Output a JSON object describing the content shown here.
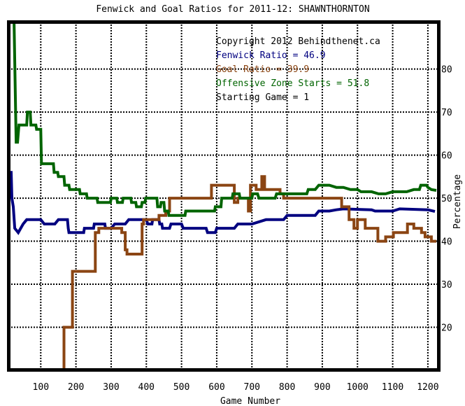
{
  "chart_data": {
    "type": "line",
    "title": "Fenwick and Goal Ratios for 2011-12: SHAWNTHORNTON",
    "xlabel": "Game Number",
    "ylabel": "Percentage",
    "xlim": [
      8,
      1232
    ],
    "ylim": [
      10,
      91
    ],
    "x_ticks": [
      100,
      200,
      300,
      400,
      500,
      600,
      700,
      800,
      900,
      1000,
      1100,
      1200
    ],
    "y_ticks": [
      20,
      30,
      40,
      50,
      60,
      70,
      80
    ],
    "grid": true,
    "legend": {
      "placement": "top-right",
      "copyright": "Copyright 2012 Behindthenet.ca",
      "starting_game": "Starting Game = 1",
      "entries": [
        {
          "label": "Fenwick Ratio = 46.9",
          "color": "#000080"
        },
        {
          "label": "Goal Ratio = 39.9",
          "color": "#8b4513"
        },
        {
          "label": "Offensive Zone Starts = 51.8",
          "color": "#006400"
        }
      ]
    },
    "series": [
      {
        "color": "#000080",
        "points": [
          [
            8,
            41
          ],
          [
            10,
            56
          ],
          [
            16,
            56
          ],
          [
            18,
            50
          ],
          [
            22,
            48
          ],
          [
            26,
            43
          ],
          [
            36,
            42
          ],
          [
            50,
            44
          ],
          [
            60,
            45
          ],
          [
            100,
            45
          ],
          [
            110,
            44
          ],
          [
            140,
            44
          ],
          [
            150,
            45
          ],
          [
            176,
            45
          ],
          [
            178,
            43
          ],
          [
            180,
            42
          ],
          [
            222,
            42
          ],
          [
            224,
            43
          ],
          [
            250,
            43
          ],
          [
            252,
            44
          ],
          [
            282,
            44
          ],
          [
            284,
            43
          ],
          [
            300,
            43
          ],
          [
            310,
            44
          ],
          [
            340,
            44
          ],
          [
            350,
            45
          ],
          [
            380,
            45
          ],
          [
            400,
            45
          ],
          [
            404,
            44
          ],
          [
            416,
            44
          ],
          [
            418,
            45
          ],
          [
            436,
            45
          ],
          [
            438,
            44
          ],
          [
            444,
            44
          ],
          [
            446,
            43
          ],
          [
            466,
            43
          ],
          [
            470,
            44
          ],
          [
            500,
            44
          ],
          [
            505,
            43
          ],
          [
            570,
            43
          ],
          [
            574,
            42
          ],
          [
            596,
            42
          ],
          [
            600,
            43
          ],
          [
            650,
            43
          ],
          [
            660,
            44
          ],
          [
            700,
            44
          ],
          [
            740,
            45
          ],
          [
            790,
            45
          ],
          [
            800,
            46
          ],
          [
            880,
            46
          ],
          [
            890,
            47
          ],
          [
            920,
            47
          ],
          [
            940,
            47.3
          ],
          [
            960,
            47.5
          ],
          [
            1040,
            47.3
          ],
          [
            1050,
            47
          ],
          [
            1100,
            47
          ],
          [
            1120,
            47.5
          ],
          [
            1200,
            47.3
          ],
          [
            1220,
            46.9
          ]
        ]
      },
      {
        "color": "#8b4513",
        "points": [
          [
            166,
            10
          ],
          [
            166,
            20
          ],
          [
            190,
            20
          ],
          [
            190,
            33
          ],
          [
            200,
            33
          ],
          [
            200,
            33
          ],
          [
            255,
            33
          ],
          [
            255,
            42
          ],
          [
            265,
            42
          ],
          [
            265,
            43
          ],
          [
            330,
            43
          ],
          [
            330,
            42
          ],
          [
            340,
            42
          ],
          [
            340,
            38
          ],
          [
            345,
            38
          ],
          [
            345,
            37
          ],
          [
            388,
            37
          ],
          [
            388,
            44
          ],
          [
            392,
            44
          ],
          [
            392,
            45
          ],
          [
            412,
            45
          ],
          [
            412,
            45
          ],
          [
            436,
            45
          ],
          [
            436,
            46
          ],
          [
            455,
            46
          ],
          [
            455,
            47
          ],
          [
            466,
            47
          ],
          [
            466,
            50
          ],
          [
            585,
            50
          ],
          [
            585,
            53
          ],
          [
            650,
            53
          ],
          [
            650,
            49
          ],
          [
            660,
            49
          ],
          [
            660,
            50
          ],
          [
            690,
            50
          ],
          [
            690,
            47
          ],
          [
            696,
            47
          ],
          [
            696,
            53
          ],
          [
            712,
            53
          ],
          [
            712,
            52
          ],
          [
            728,
            52
          ],
          [
            728,
            55
          ],
          [
            736,
            55
          ],
          [
            736,
            52
          ],
          [
            780,
            52
          ],
          [
            780,
            51
          ],
          [
            790,
            51
          ],
          [
            790,
            50
          ],
          [
            955,
            50
          ],
          [
            955,
            48
          ],
          [
            976,
            48
          ],
          [
            976,
            45
          ],
          [
            990,
            45
          ],
          [
            990,
            43
          ],
          [
            1000,
            43
          ],
          [
            1000,
            45
          ],
          [
            1022,
            45
          ],
          [
            1022,
            43
          ],
          [
            1058,
            43
          ],
          [
            1058,
            40
          ],
          [
            1080,
            40
          ],
          [
            1080,
            41
          ],
          [
            1102,
            41
          ],
          [
            1102,
            42
          ],
          [
            1142,
            42
          ],
          [
            1142,
            44
          ],
          [
            1160,
            44
          ],
          [
            1160,
            43
          ],
          [
            1182,
            43
          ],
          [
            1182,
            42
          ],
          [
            1192,
            42
          ],
          [
            1192,
            41
          ],
          [
            1210,
            41
          ],
          [
            1210,
            40
          ],
          [
            1224,
            40
          ]
        ]
      },
      {
        "color": "#006400",
        "points": [
          [
            10,
            91
          ],
          [
            24,
            91
          ],
          [
            30,
            63
          ],
          [
            34,
            63
          ],
          [
            38,
            67
          ],
          [
            60,
            67
          ],
          [
            62,
            70
          ],
          [
            70,
            70
          ],
          [
            72,
            67
          ],
          [
            86,
            67
          ],
          [
            88,
            66
          ],
          [
            100,
            66
          ],
          [
            102,
            58
          ],
          [
            136,
            58
          ],
          [
            138,
            56
          ],
          [
            148,
            56
          ],
          [
            150,
            55
          ],
          [
            166,
            55
          ],
          [
            168,
            53
          ],
          [
            180,
            53
          ],
          [
            182,
            52
          ],
          [
            210,
            52
          ],
          [
            212,
            51
          ],
          [
            230,
            51
          ],
          [
            232,
            50
          ],
          [
            260,
            50
          ],
          [
            262,
            49
          ],
          [
            298,
            49
          ],
          [
            300,
            50
          ],
          [
            316,
            50
          ],
          [
            318,
            49
          ],
          [
            332,
            49
          ],
          [
            334,
            50
          ],
          [
            356,
            50
          ],
          [
            358,
            49
          ],
          [
            370,
            49
          ],
          [
            372,
            48
          ],
          [
            386,
            48
          ],
          [
            388,
            49
          ],
          [
            396,
            49
          ],
          [
            398,
            50
          ],
          [
            430,
            50
          ],
          [
            432,
            48
          ],
          [
            440,
            48
          ],
          [
            442,
            49
          ],
          [
            450,
            49
          ],
          [
            452,
            47
          ],
          [
            462,
            47
          ],
          [
            464,
            46
          ],
          [
            510,
            46
          ],
          [
            512,
            47
          ],
          [
            594,
            47
          ],
          [
            596,
            48
          ],
          [
            612,
            48
          ],
          [
            614,
            50
          ],
          [
            644,
            50
          ],
          [
            646,
            51
          ],
          [
            664,
            51
          ],
          [
            666,
            50
          ],
          [
            700,
            50
          ],
          [
            702,
            51
          ],
          [
            716,
            51
          ],
          [
            720,
            50
          ],
          [
            766,
            50
          ],
          [
            770,
            51
          ],
          [
            826,
            51
          ],
          [
            830,
            51
          ],
          [
            856,
            51
          ],
          [
            860,
            52
          ],
          [
            880,
            52
          ],
          [
            890,
            53
          ],
          [
            920,
            53
          ],
          [
            940,
            52.5
          ],
          [
            960,
            52.5
          ],
          [
            980,
            52
          ],
          [
            1000,
            52
          ],
          [
            1010,
            51.5
          ],
          [
            1040,
            51.5
          ],
          [
            1060,
            51
          ],
          [
            1080,
            51
          ],
          [
            1100,
            51.5
          ],
          [
            1140,
            51.5
          ],
          [
            1160,
            52
          ],
          [
            1176,
            52
          ],
          [
            1180,
            53
          ],
          [
            1196,
            53
          ],
          [
            1200,
            52.5
          ],
          [
            1210,
            52
          ],
          [
            1224,
            51.8
          ]
        ]
      }
    ]
  }
}
